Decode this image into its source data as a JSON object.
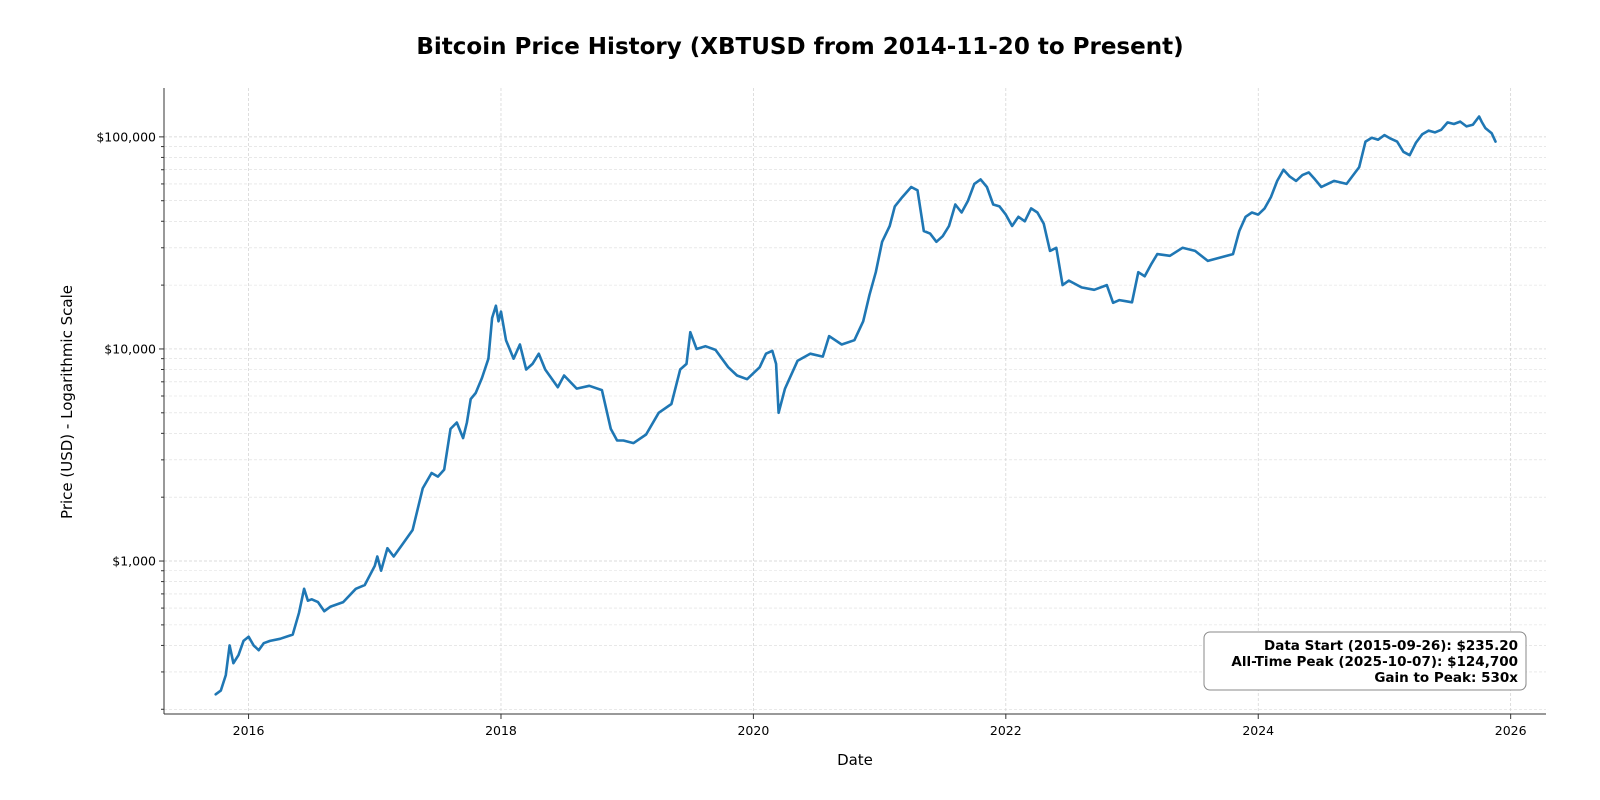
{
  "chart_data": {
    "type": "line",
    "title": "Bitcoin Price History (XBTUSD from 2014-11-20 to Present)",
    "xlabel": "Date",
    "ylabel": "Price (USD) - Logarithmic Scale",
    "yscale": "log",
    "xlim": [
      2015.33,
      2026.28
    ],
    "ylim": [
      190,
      170000
    ],
    "grid": true,
    "x_ticks": [
      {
        "value": 2016,
        "label": "2016"
      },
      {
        "value": 2018,
        "label": "2018"
      },
      {
        "value": 2020,
        "label": "2020"
      },
      {
        "value": 2022,
        "label": "2022"
      },
      {
        "value": 2024,
        "label": "2024"
      },
      {
        "value": 2026,
        "label": "2026"
      }
    ],
    "y_ticks": [
      {
        "value": 1000,
        "label": "$1,000"
      },
      {
        "value": 10000,
        "label": "$10,000"
      },
      {
        "value": 100000,
        "label": "$100,000"
      }
    ],
    "line_color": "#1f77b4",
    "series": [
      {
        "name": "XBTUSD",
        "x": [
          2015.74,
          2015.78,
          2015.82,
          2015.85,
          2015.88,
          2015.92,
          2015.96,
          2016.0,
          2016.04,
          2016.08,
          2016.12,
          2016.17,
          2016.25,
          2016.35,
          2016.4,
          2016.44,
          2016.47,
          2016.5,
          2016.55,
          2016.6,
          2016.65,
          2016.75,
          2016.85,
          2016.92,
          2017.0,
          2017.02,
          2017.05,
          2017.1,
          2017.15,
          2017.22,
          2017.3,
          2017.38,
          2017.45,
          2017.5,
          2017.55,
          2017.6,
          2017.65,
          2017.7,
          2017.73,
          2017.76,
          2017.8,
          2017.85,
          2017.9,
          2017.93,
          2017.96,
          2017.98,
          2018.0,
          2018.04,
          2018.1,
          2018.15,
          2018.2,
          2018.25,
          2018.3,
          2018.35,
          2018.45,
          2018.5,
          2018.6,
          2018.7,
          2018.8,
          2018.87,
          2018.92,
          2018.97,
          2019.05,
          2019.15,
          2019.25,
          2019.35,
          2019.42,
          2019.47,
          2019.5,
          2019.55,
          2019.62,
          2019.7,
          2019.8,
          2019.87,
          2019.95,
          2020.05,
          2020.1,
          2020.15,
          2020.18,
          2020.2,
          2020.25,
          2020.35,
          2020.45,
          2020.55,
          2020.6,
          2020.7,
          2020.8,
          2020.87,
          2020.92,
          2020.97,
          2021.02,
          2021.08,
          2021.12,
          2021.18,
          2021.25,
          2021.3,
          2021.35,
          2021.4,
          2021.45,
          2021.5,
          2021.55,
          2021.6,
          2021.65,
          2021.7,
          2021.75,
          2021.8,
          2021.85,
          2021.9,
          2021.95,
          2022.0,
          2022.05,
          2022.1,
          2022.15,
          2022.2,
          2022.25,
          2022.3,
          2022.35,
          2022.4,
          2022.45,
          2022.5,
          2022.6,
          2022.7,
          2022.8,
          2022.85,
          2022.9,
          2022.95,
          2023.0,
          2023.05,
          2023.1,
          2023.15,
          2023.2,
          2023.3,
          2023.4,
          2023.5,
          2023.6,
          2023.7,
          2023.8,
          2023.85,
          2023.9,
          2023.95,
          2024.0,
          2024.05,
          2024.1,
          2024.15,
          2024.2,
          2024.25,
          2024.3,
          2024.35,
          2024.4,
          2024.45,
          2024.5,
          2024.55,
          2024.6,
          2024.7,
          2024.8,
          2024.85,
          2024.9,
          2024.95,
          2025.0,
          2025.05,
          2025.1,
          2025.15,
          2025.2,
          2025.25,
          2025.3,
          2025.35,
          2025.4,
          2025.45,
          2025.5,
          2025.55,
          2025.6,
          2025.65,
          2025.7,
          2025.75,
          2025.77,
          2025.8,
          2025.85,
          2025.88
        ],
        "y": [
          235.2,
          245,
          290,
          400,
          330,
          360,
          420,
          440,
          400,
          380,
          410,
          420,
          430,
          450,
          570,
          740,
          650,
          660,
          640,
          580,
          610,
          640,
          740,
          770,
          950,
          1050,
          900,
          1150,
          1050,
          1200,
          1400,
          2200,
          2600,
          2500,
          2700,
          4200,
          4500,
          3800,
          4500,
          5800,
          6200,
          7300,
          9000,
          14000,
          16000,
          13500,
          15000,
          11000,
          9000,
          10500,
          8000,
          8500,
          9500,
          8000,
          6600,
          7500,
          6500,
          6700,
          6400,
          4200,
          3700,
          3700,
          3600,
          3950,
          5000,
          5500,
          8000,
          8500,
          12000,
          10000,
          10300,
          9900,
          8200,
          7500,
          7200,
          8200,
          9500,
          9800,
          8500,
          5000,
          6500,
          8800,
          9500,
          9200,
          11500,
          10500,
          11000,
          13500,
          18000,
          23000,
          32000,
          38000,
          47000,
          52000,
          58000,
          56000,
          36000,
          35000,
          32000,
          34000,
          38000,
          48000,
          44000,
          50000,
          60000,
          63000,
          58000,
          48000,
          47000,
          43000,
          38000,
          42000,
          40000,
          46000,
          44000,
          39000,
          29000,
          30000,
          20000,
          21000,
          19500,
          19000,
          20000,
          16500,
          17000,
          16800,
          16600,
          23000,
          22000,
          25000,
          28000,
          27500,
          30000,
          29000,
          26000,
          27000,
          28000,
          36000,
          42000,
          44000,
          43000,
          46000,
          52000,
          62000,
          70000,
          65000,
          62000,
          66000,
          68000,
          63000,
          58000,
          60000,
          62000,
          60000,
          72000,
          95000,
          99000,
          97000,
          102000,
          98000,
          95000,
          85000,
          82000,
          94000,
          103000,
          107000,
          105000,
          108000,
          117000,
          115000,
          118000,
          112000,
          114000,
          124700,
          118000,
          110000,
          104000,
          95000
        ]
      }
    ],
    "annotation": {
      "lines": [
        "Data Start (2015-09-26): $235.20",
        "All-Time Peak (2025-10-07): $124,700",
        "Gain to Peak: 530x"
      ],
      "position": "bottom-right"
    }
  }
}
